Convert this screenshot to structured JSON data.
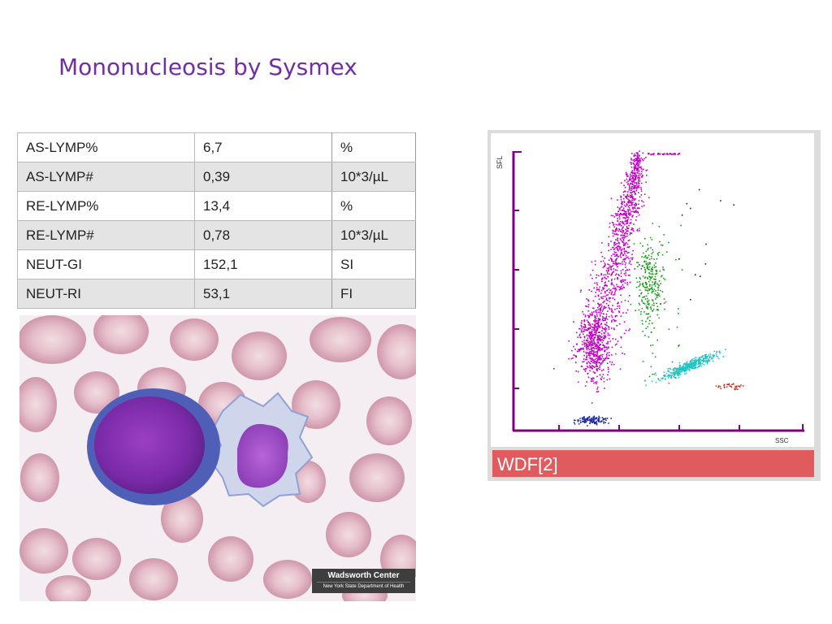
{
  "slide": {
    "title": "Mononucleosis by Sysmex"
  },
  "lab_table": {
    "rows": [
      {
        "param": "AS-LYMP%",
        "value": "6,7",
        "unit": "%"
      },
      {
        "param": "AS-LYMP#",
        "value": "0,39",
        "unit": "10*3/µL"
      },
      {
        "param": "RE-LYMP%",
        "value": "13,4",
        "unit": "%"
      },
      {
        "param": "RE-LYMP#",
        "value": "0,78",
        "unit": "10*3/µL"
      },
      {
        "param": "NEUT-GI",
        "value": "152,1",
        "unit": "SI"
      },
      {
        "param": "NEUT-RI",
        "value": "53,1",
        "unit": "FI"
      }
    ]
  },
  "smear_image": {
    "watermark_line1": "Wadsworth Center",
    "watermark_line2": "New York State Department of Health"
  },
  "scatter": {
    "y_axis_label": "SFL",
    "x_axis_label": "SSC",
    "channel_label": "WDF[2]",
    "colors": {
      "lymphocytes": "#c000c0",
      "monocytes": "#1a9a1a",
      "neutrophils": "#22c4c4",
      "eosinophils": "#b83a2a",
      "debris": "#1e2aa0",
      "axis": "#800080",
      "banner": "#e05b5d"
    }
  }
}
